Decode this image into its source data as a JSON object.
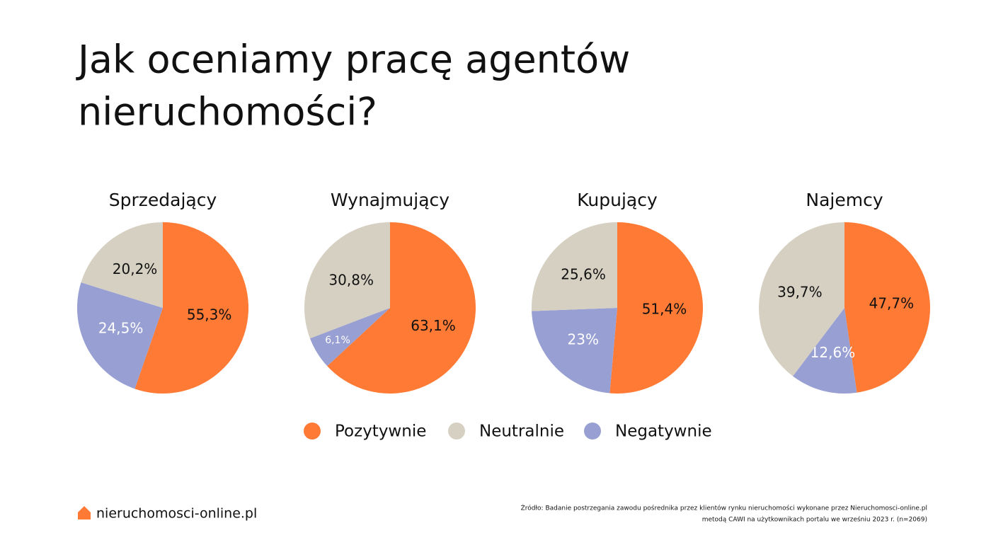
{
  "title": [
    "Jak oceniamy pracę agentów",
    "nieruchomości?"
  ],
  "legend": [
    {
      "name": "Pozytywnie",
      "color": "#ff7a35"
    },
    {
      "name": "Neutralnie",
      "color": "#d6d0c2"
    },
    {
      "name": "Negatywnie",
      "color": "#989fd2"
    }
  ],
  "chart_data": [
    {
      "type": "pie",
      "title": "Sprzedający",
      "values": [
        55.3,
        20.2,
        24.5
      ],
      "value_labels": [
        "55,3%",
        "20,2%",
        "24,5%"
      ]
    },
    {
      "type": "pie",
      "title": "Wynajmujący",
      "values": [
        63.1,
        30.8,
        6.1
      ],
      "value_labels": [
        "63,1%",
        "30,8%",
        "6,1%"
      ]
    },
    {
      "type": "pie",
      "title": "Kupujący",
      "values": [
        51.4,
        25.6,
        23
      ],
      "value_labels": [
        "51,4%",
        "25,6%",
        "23%"
      ]
    },
    {
      "type": "pie",
      "title": "Najemcy",
      "values": [
        47.7,
        39.7,
        12.6
      ],
      "value_labels": [
        "47,7%",
        "39,7%",
        "12,6%"
      ]
    }
  ],
  "brand": "nieruchomosci-online.pl",
  "source": [
    "Źródło: Badanie postrzegania zawodu pośrednika przez klientów rynku nieruchomości wykonane przez Nieruchomosci-online.pl",
    "metodą CAWI na użytkownikach portalu we wrześniu 2023 r. (n=2069)"
  ]
}
